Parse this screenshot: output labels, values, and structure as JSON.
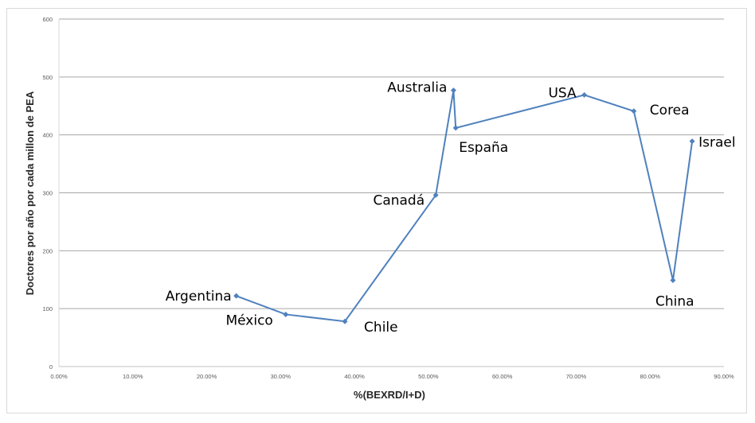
{
  "chart_data": {
    "type": "scatter",
    "mode": "lines+markers",
    "xlabel": "%(BEXRD/I+D)",
    "ylabel": "Doctores por año por cada millon de PEA",
    "xlim": [
      0,
      0.9
    ],
    "ylim": [
      0,
      600
    ],
    "x_ticks": [
      0,
      0.1,
      0.2,
      0.3,
      0.4,
      0.5,
      0.6,
      0.7,
      0.8,
      0.9
    ],
    "x_tick_labels": [
      "0.00%",
      "10.00%",
      "20.00%",
      "30.00%",
      "40.00%",
      "50.00%",
      "60.00%",
      "70.00%",
      "80.00%",
      "90.00%"
    ],
    "y_ticks": [
      0,
      100,
      200,
      300,
      400,
      500,
      600
    ],
    "y_tick_labels": [
      "0",
      "100",
      "200",
      "300",
      "400",
      "500",
      "600"
    ],
    "grid": "horizontal",
    "line_color": "#4f81bd",
    "points": [
      {
        "label": "Argentina",
        "x": 0.24,
        "y": 122
      },
      {
        "label": "México",
        "x": 0.307,
        "y": 90
      },
      {
        "label": "Chile",
        "x": 0.387,
        "y": 78
      },
      {
        "label": "Canadá",
        "x": 0.51,
        "y": 296
      },
      {
        "label": "Australia",
        "x": 0.534,
        "y": 477
      },
      {
        "label": "España",
        "x": 0.537,
        "y": 412
      },
      {
        "label": "USA",
        "x": 0.711,
        "y": 469
      },
      {
        "label": "Corea",
        "x": 0.778,
        "y": 441
      },
      {
        "label": "China",
        "x": 0.831,
        "y": 149
      },
      {
        "label": "Israel",
        "x": 0.857,
        "y": 389
      }
    ]
  }
}
